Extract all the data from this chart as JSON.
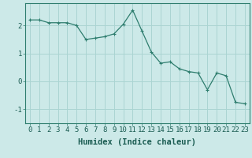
{
  "x": [
    0,
    1,
    2,
    3,
    4,
    5,
    6,
    7,
    8,
    9,
    10,
    11,
    12,
    13,
    14,
    15,
    16,
    17,
    18,
    19,
    20,
    21,
    22,
    23
  ],
  "y": [
    2.2,
    2.2,
    2.1,
    2.1,
    2.1,
    2.0,
    1.5,
    1.55,
    1.6,
    1.7,
    2.05,
    2.55,
    1.8,
    1.05,
    0.65,
    0.7,
    0.45,
    0.35,
    0.3,
    -0.3,
    0.3,
    0.2,
    -0.75,
    -0.8
  ],
  "line_color": "#2e7d6e",
  "marker": "+",
  "marker_size": 3,
  "marker_linewidth": 0.8,
  "line_width": 0.9,
  "bg_color": "#cce9e8",
  "grid_color": "#aad4d2",
  "xlabel": "Humidex (Indice chaleur)",
  "ylim": [
    -1.5,
    2.8
  ],
  "xlim": [
    -0.5,
    23.5
  ],
  "yticks": [
    -1,
    0,
    1,
    2
  ],
  "xticks": [
    0,
    1,
    2,
    3,
    4,
    5,
    6,
    7,
    8,
    9,
    10,
    11,
    12,
    13,
    14,
    15,
    16,
    17,
    18,
    19,
    20,
    21,
    22,
    23
  ],
  "xlabel_fontsize": 7.5,
  "tick_fontsize": 6.5
}
